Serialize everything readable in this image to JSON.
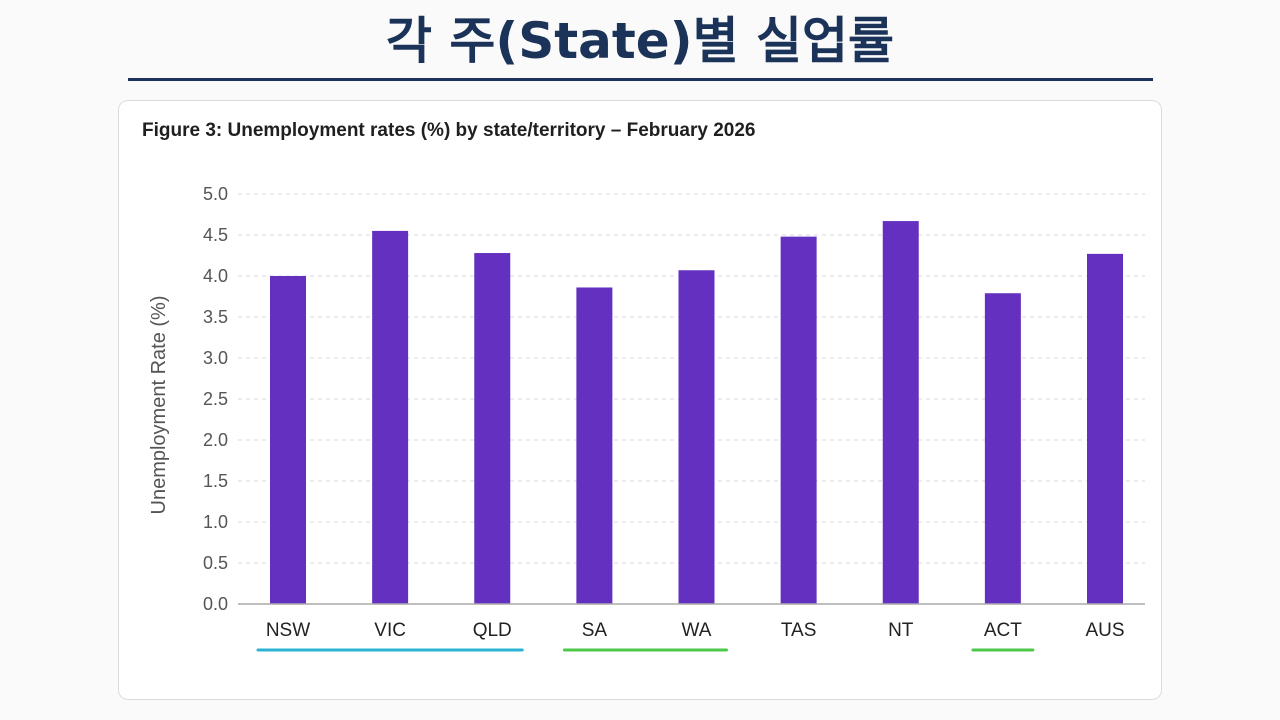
{
  "page": {
    "title": "각 주(State)별 실업률",
    "title_color": "#1b3358"
  },
  "chart_data": {
    "type": "bar",
    "title": "Figure 3: Unemployment rates (%) by state/territory – February 2026",
    "xlabel": "",
    "ylabel": "Unemployment Rate (%)",
    "categories": [
      "NSW",
      "VIC",
      "QLD",
      "SA",
      "WA",
      "TAS",
      "NT",
      "ACT",
      "AUS"
    ],
    "values": [
      4.0,
      4.55,
      4.28,
      3.86,
      4.07,
      4.48,
      4.67,
      3.79,
      4.27
    ],
    "ylim": [
      0,
      5
    ],
    "yticks": [
      "0.0",
      "0.5",
      "1.0",
      "1.5",
      "2.0",
      "2.5",
      "3.0",
      "3.5",
      "4.0",
      "4.5",
      "5.0"
    ],
    "grid": true,
    "bar_color": "#6430c0",
    "group_underlines": [
      {
        "from": "NSW",
        "to": "QLD",
        "color": "#2bb3d6"
      },
      {
        "from": "SA",
        "to": "WA",
        "color": "#4cc94a"
      },
      {
        "from": "ACT",
        "to": "ACT",
        "color": "#4cc94a"
      }
    ]
  }
}
